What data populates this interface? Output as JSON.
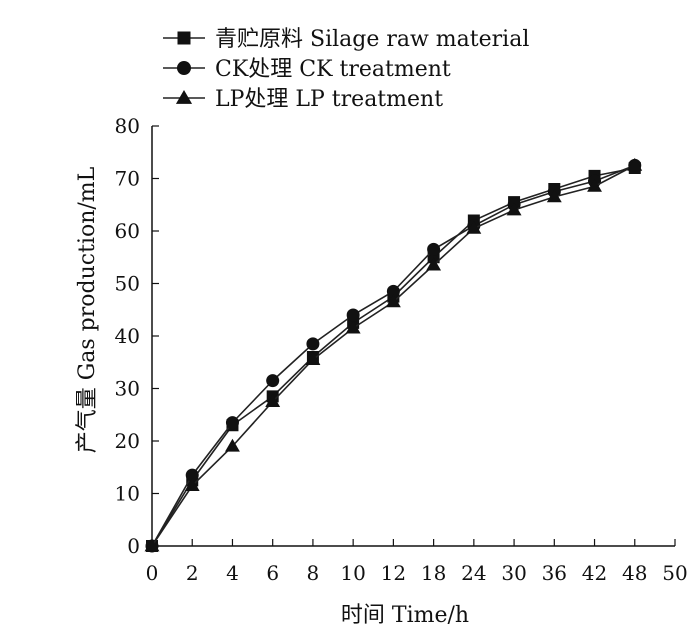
{
  "chart_data": {
    "type": "line",
    "xlabel": "时间  Time/h",
    "ylabel": "产气量  Gas production/mL",
    "ylim": [
      0,
      80
    ],
    "y_ticks": [
      "0",
      "10",
      "20",
      "30",
      "40",
      "50",
      "60",
      "70",
      "80"
    ],
    "x_ticks": [
      "0",
      "2",
      "4",
      "6",
      "8",
      "10",
      "12",
      "18",
      "24",
      "30",
      "36",
      "42",
      "48",
      "50"
    ],
    "x": [
      "0",
      "2",
      "4",
      "6",
      "8",
      "10",
      "12",
      "18",
      "24",
      "30",
      "36",
      "42",
      "48"
    ],
    "grid": false,
    "legend_position": "top-left",
    "series": [
      {
        "name": "青贮原料 Silage raw material",
        "marker": "square",
        "values": [
          0,
          12.5,
          23,
          28.5,
          36,
          42.5,
          47.5,
          55,
          62,
          65.5,
          68,
          70.5,
          72
        ]
      },
      {
        "name": "CK处理 CK treatment",
        "marker": "circle",
        "values": [
          0,
          13.5,
          23.5,
          31.5,
          38.5,
          44,
          48.5,
          56.5,
          61,
          65,
          67.5,
          69.5,
          72.5
        ]
      },
      {
        "name": "LP处理 LP treatment",
        "marker": "triangle",
        "values": [
          0,
          11.5,
          19,
          27.5,
          35.5,
          41.5,
          46.5,
          53.5,
          60.5,
          64,
          66.5,
          68.5,
          72.5
        ]
      }
    ]
  }
}
